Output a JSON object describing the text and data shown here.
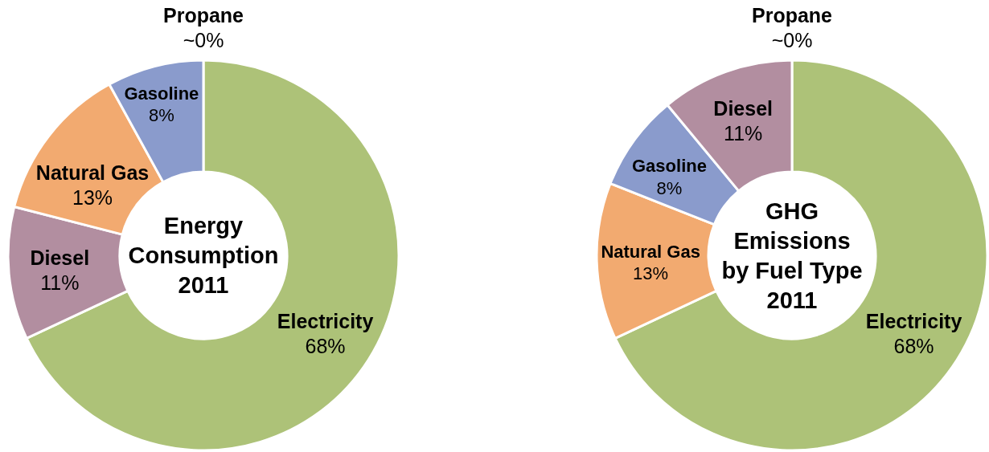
{
  "chart_data": [
    {
      "type": "donut",
      "title": "Energy Consumption 2011",
      "categories": [
        "Electricity",
        "Diesel",
        "Natural Gas",
        "Gasoline",
        "Propane"
      ],
      "values": [
        68,
        11,
        13,
        8,
        0
      ],
      "colors": [
        "#adc278",
        "#b28ea0",
        "#f2aa70",
        "#8a9bcc",
        null
      ],
      "value_labels": [
        "68%",
        "11%",
        "13%",
        "8%",
        "~0%"
      ]
    },
    {
      "type": "donut",
      "title": "GHG Emissions by Fuel Type 2011",
      "categories": [
        "Propane",
        "Electricity",
        "Natural Gas",
        "Gasoline",
        "Diesel"
      ],
      "values": [
        0,
        68,
        13,
        8,
        11
      ],
      "colors": [
        null,
        "#adc278",
        "#f2aa70",
        "#8a9bcc",
        "#b28ea0"
      ],
      "value_labels": [
        "~0%",
        "68%",
        "13%",
        "8%",
        "11%"
      ]
    }
  ]
}
